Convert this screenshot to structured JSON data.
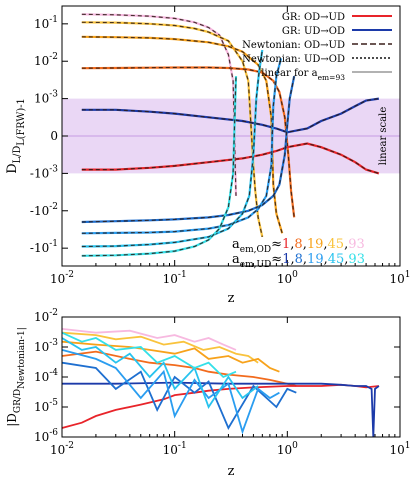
{
  "chart_data": [
    {
      "type": "line",
      "xscale": "log",
      "yscale": "symlog (log beyond ±1e-3, linear inside)",
      "xlim": [
        0.01,
        10
      ],
      "ylim": [
        -0.3,
        0.3
      ],
      "xlabel": "z",
      "ylabel": "D_L/D_L(FRW)-1",
      "xticklabels": [
        "10^-2",
        "10^-1",
        "10^0",
        "10^1"
      ],
      "yticklabels": [
        "10^-1",
        "10^-2",
        "10^-3",
        "0",
        "-10^-3",
        "-10^-2",
        "-10^-1"
      ],
      "band_label": "linear scale",
      "band_range": [
        -0.001,
        0.001
      ],
      "legend_position": "top-right",
      "legend": [
        {
          "label": "GR: OD→UD",
          "color": "#e8242a",
          "style": "solid"
        },
        {
          "label": "GR: UD→OD",
          "color": "#1c3aa9",
          "style": "solid"
        },
        {
          "label": "Newtonian: OD→UD",
          "color": "#3a1f1a",
          "style": "dashed"
        },
        {
          "label": "Newtonian: UD→OD",
          "color": "#111111",
          "style": "dotted"
        },
        {
          "label": "linear for a_em=93",
          "color": "#999999",
          "style": "solid"
        }
      ],
      "annotation_od": {
        "prefix": "a",
        "sub": "em,OD",
        "approx": "≈",
        "values": [
          "1",
          "8",
          "19",
          "45",
          "93"
        ],
        "colors": [
          "#e8242a",
          "#f26b1d",
          "#f7a21b",
          "#f9c33d",
          "#f7b9e0"
        ]
      },
      "annotation_ud": {
        "prefix": "a",
        "sub": "em,UD",
        "approx": "≈",
        "values": [
          "1",
          "8",
          "19",
          "45",
          "93"
        ],
        "colors": [
          "#1c3aa9",
          "#1e6fd0",
          "#2a9df0",
          "#27c3ee",
          "#34e0e8"
        ]
      },
      "series": [
        {
          "name": "OD 93",
          "color": "#f7b9e0",
          "x": [
            0.015,
            0.03,
            0.06,
            0.1,
            0.15,
            0.2,
            0.25,
            0.3,
            0.33,
            0.35
          ],
          "y": [
            0.18,
            0.175,
            0.16,
            0.14,
            0.11,
            0.08,
            0.05,
            0.015,
            0.003,
            -0.004
          ]
        },
        {
          "name": "OD 45",
          "color": "#f9c33d",
          "x": [
            0.015,
            0.03,
            0.06,
            0.1,
            0.15,
            0.2,
            0.3,
            0.4,
            0.45,
            0.5,
            0.52,
            0.55,
            0.6
          ],
          "y": [
            0.11,
            0.108,
            0.1,
            0.09,
            0.075,
            0.06,
            0.035,
            0.01,
            0.003,
            -0.0008,
            -0.003,
            -0.015,
            -0.05
          ]
        },
        {
          "name": "OD 19",
          "color": "#f7a21b",
          "x": [
            0.015,
            0.03,
            0.06,
            0.1,
            0.2,
            0.3,
            0.4,
            0.55,
            0.65,
            0.72,
            0.75,
            0.8,
            0.9
          ],
          "y": [
            0.045,
            0.044,
            0.042,
            0.039,
            0.032,
            0.025,
            0.018,
            0.008,
            0.003,
            0.0005,
            -0.002,
            -0.012,
            -0.04
          ]
        },
        {
          "name": "OD 8",
          "color": "#f26b1d",
          "x": [
            0.015,
            0.03,
            0.06,
            0.1,
            0.2,
            0.3,
            0.45,
            0.6,
            0.75,
            0.85,
            0.95,
            1.02,
            1.08,
            1.15
          ],
          "y": [
            0.0065,
            0.0066,
            0.0067,
            0.0068,
            0.0068,
            0.0066,
            0.006,
            0.005,
            0.003,
            0.0015,
            0.0005,
            -0.0005,
            -0.003,
            -0.015
          ]
        },
        {
          "name": "OD 1",
          "color": "#e8242a",
          "x": [
            0.015,
            0.03,
            0.06,
            0.1,
            0.2,
            0.4,
            0.6,
            0.8,
            1.0,
            1.5,
            2,
            3,
            4,
            5,
            6.5
          ],
          "y": [
            -0.0009,
            -0.0009,
            -0.00085,
            -0.0008,
            -0.0007,
            -0.0006,
            -0.0005,
            -0.0004,
            -0.0003,
            -0.0002,
            -0.0003,
            -0.0005,
            -0.0007,
            -0.0009,
            -0.001
          ]
        },
        {
          "name": "UD 1",
          "color": "#1c3aa9",
          "x": [
            0.015,
            0.03,
            0.06,
            0.1,
            0.2,
            0.4,
            0.6,
            0.8,
            1.0,
            1.5,
            2,
            3,
            4,
            5,
            6.5
          ],
          "y": [
            0.0007,
            0.0007,
            0.00065,
            0.0006,
            0.0005,
            0.0004,
            0.0003,
            0.0002,
            0.0001,
            0.0002,
            0.0004,
            0.0006,
            0.0008,
            0.00095,
            0.001
          ]
        },
        {
          "name": "UD 8",
          "color": "#1e6fd0",
          "x": [
            0.015,
            0.03,
            0.06,
            0.1,
            0.2,
            0.3,
            0.45,
            0.6,
            0.75,
            0.85,
            0.95,
            1.0,
            1.05,
            1.15
          ],
          "y": [
            -0.02,
            -0.019,
            -0.018,
            -0.017,
            -0.015,
            -0.013,
            -0.01,
            -0.007,
            -0.004,
            -0.002,
            -0.0005,
            0.0003,
            0.001,
            0.004
          ]
        },
        {
          "name": "UD 19",
          "color": "#2a9df0",
          "x": [
            0.015,
            0.03,
            0.06,
            0.1,
            0.2,
            0.3,
            0.45,
            0.55,
            0.65,
            0.72,
            0.75,
            0.8,
            0.88
          ],
          "y": [
            -0.04,
            -0.039,
            -0.038,
            -0.036,
            -0.03,
            -0.024,
            -0.015,
            -0.009,
            -0.004,
            -0.0008,
            0.0008,
            0.004,
            0.012
          ]
        },
        {
          "name": "UD 45",
          "color": "#27c3ee",
          "x": [
            0.015,
            0.03,
            0.06,
            0.1,
            0.2,
            0.3,
            0.4,
            0.46,
            0.5,
            0.53,
            0.56,
            0.6
          ],
          "y": [
            -0.09,
            -0.088,
            -0.08,
            -0.07,
            -0.05,
            -0.03,
            -0.012,
            -0.004,
            -0.0005,
            0.001,
            0.005,
            0.02
          ]
        },
        {
          "name": "UD 93",
          "color": "#34e0e8",
          "x": [
            0.015,
            0.03,
            0.06,
            0.1,
            0.15,
            0.2,
            0.25,
            0.3,
            0.33,
            0.35
          ],
          "y": [
            -0.16,
            -0.155,
            -0.14,
            -0.12,
            -0.09,
            -0.06,
            -0.03,
            -0.008,
            -0.001,
            0.004
          ]
        }
      ]
    },
    {
      "type": "line",
      "xscale": "log",
      "yscale": "log",
      "xlim": [
        0.01,
        10
      ],
      "ylim": [
        1e-06,
        0.01
      ],
      "xlabel": "z",
      "ylabel": "|D_GR/D_Newtonian-1|",
      "xticklabels": [
        "10^-2",
        "10^-1",
        "10^0",
        "10^1"
      ],
      "yticklabels": [
        "10^-2",
        "10^-3",
        "10^-4",
        "10^-5",
        "10^-6"
      ],
      "series": [
        {
          "name": "OD 93",
          "color": "#f7b9e0",
          "x": [
            0.01,
            0.02,
            0.04,
            0.07,
            0.1,
            0.15,
            0.2,
            0.27,
            0.35
          ],
          "y": [
            0.004,
            0.003,
            0.0035,
            0.002,
            0.0025,
            0.0015,
            0.002,
            0.0012,
            0.0008
          ]
        },
        {
          "name": "OD 45",
          "color": "#f9c33d",
          "x": [
            0.01,
            0.02,
            0.03,
            0.05,
            0.08,
            0.12,
            0.18,
            0.25,
            0.35,
            0.45,
            0.55
          ],
          "y": [
            0.003,
            0.0025,
            0.0018,
            0.0022,
            0.0012,
            0.0015,
            0.0008,
            0.001,
            0.0006,
            0.0005,
            0.0003
          ]
        },
        {
          "name": "OD 19",
          "color": "#f7a21b",
          "x": [
            0.01,
            0.02,
            0.04,
            0.06,
            0.1,
            0.15,
            0.2,
            0.3,
            0.4,
            0.55,
            0.7,
            0.85
          ],
          "y": [
            0.0015,
            0.0012,
            0.001,
            0.0008,
            0.0006,
            0.0009,
            0.0004,
            0.0005,
            0.0003,
            0.0004,
            0.0002,
            0.00015
          ]
        },
        {
          "name": "OD 8",
          "color": "#f26b1d",
          "x": [
            0.01,
            0.02,
            0.04,
            0.06,
            0.1,
            0.15,
            0.2,
            0.3,
            0.5,
            0.7,
            1.0,
            1.2
          ],
          "y": [
            0.0005,
            0.0007,
            0.0004,
            0.0003,
            0.00025,
            0.0002,
            0.00015,
            0.00012,
            0.0001,
            8e-05,
            6e-05,
            5e-05
          ]
        },
        {
          "name": "OD 1",
          "color": "#e8242a",
          "x": [
            0.01,
            0.015,
            0.02,
            0.03,
            0.05,
            0.08,
            0.1,
            0.15,
            0.2,
            0.3,
            0.5,
            1,
            2,
            3,
            4,
            5,
            6.5
          ],
          "y": [
            2e-06,
            3e-06,
            5e-06,
            8e-06,
            1.2e-05,
            1.8e-05,
            2.5e-05,
            3e-05,
            3.5e-05,
            4e-05,
            4.5e-05,
            5e-05,
            5e-05,
            5.5e-05,
            5e-05,
            4.5e-05,
            5e-05
          ]
        },
        {
          "name": "UD 1",
          "color": "#1c3aa9",
          "x": [
            0.01,
            0.03,
            0.1,
            0.3,
            1,
            2,
            3,
            4,
            5,
            5.6,
            5.8,
            6,
            6.5
          ],
          "y": [
            6e-05,
            6e-05,
            6.5e-05,
            6e-05,
            6e-05,
            6e-05,
            5.5e-05,
            5e-05,
            5e-05,
            4e-05,
            1e-06,
            4e-05,
            5e-05
          ]
        },
        {
          "name": "UD 8",
          "color": "#1e6fd0",
          "x": [
            0.01,
            0.02,
            0.03,
            0.05,
            0.07,
            0.1,
            0.15,
            0.2,
            0.3,
            0.5,
            0.8,
            1.0,
            1.2
          ],
          "y": [
            0.0003,
            0.0002,
            4e-05,
            0.00015,
            8e-06,
            0.0001,
            3e-05,
            7e-05,
            2e-06,
            5e-05,
            1e-05,
            4e-05,
            3e-05
          ]
        },
        {
          "name": "UD 19",
          "color": "#2a9df0",
          "x": [
            0.01,
            0.02,
            0.03,
            0.05,
            0.08,
            0.1,
            0.15,
            0.2,
            0.3,
            0.4,
            0.55,
            0.7,
            0.85
          ],
          "y": [
            0.0008,
            0.0004,
            0.0002,
            2e-05,
            0.00015,
            5e-06,
            8e-05,
            2e-05,
            6e-05,
            1.5e-06,
            4e-05,
            2e-05,
            3e-05
          ]
        },
        {
          "name": "UD 45",
          "color": "#27c3ee",
          "x": [
            0.01,
            0.015,
            0.02,
            0.03,
            0.04,
            0.06,
            0.08,
            0.1,
            0.15,
            0.2,
            0.3,
            0.4,
            0.55
          ],
          "y": [
            0.002,
            0.0008,
            0.001,
            0.0003,
            0.0006,
            0.0001,
            0.0003,
            4e-05,
            0.0002,
            1e-05,
            0.0001,
            2e-05,
            5e-05
          ]
        },
        {
          "name": "UD 93",
          "color": "#34e0e8",
          "x": [
            0.01,
            0.015,
            0.02,
            0.03,
            0.05,
            0.07,
            0.1,
            0.15,
            0.2,
            0.27,
            0.35
          ],
          "y": [
            0.003,
            0.0015,
            0.002,
            0.0008,
            0.001,
            0.0003,
            0.0005,
            0.0002,
            0.0003,
            0.0001,
            0.00015
          ]
        }
      ]
    }
  ]
}
